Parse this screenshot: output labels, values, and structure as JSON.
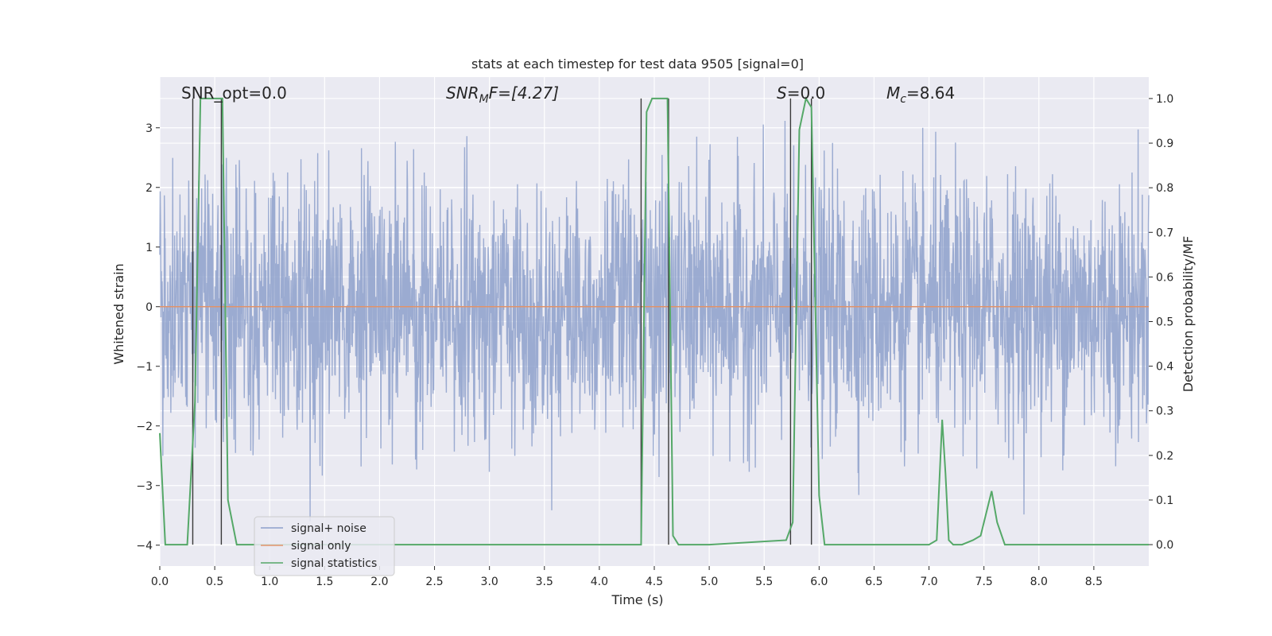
{
  "chart_data": {
    "type": "line",
    "title": "stats at each timestep for test data 9505 [signal=0]",
    "xlabel": "Time (s)",
    "ylabel": "Whitened strain",
    "ylabel_right": "Detection probability/MF",
    "xlim": [
      0.0,
      9.0
    ],
    "ylim": [
      -4.35,
      3.85
    ],
    "ylim_right": [
      -0.048,
      1.048
    ],
    "xticks": [
      "0.0",
      "0.5",
      "1.0",
      "1.5",
      "2.0",
      "2.5",
      "3.0",
      "3.5",
      "4.0",
      "4.5",
      "5.0",
      "5.5",
      "6.0",
      "6.5",
      "7.0",
      "7.5",
      "8.0",
      "8.5"
    ],
    "yticks_left": [
      "3",
      "2",
      "1",
      "0",
      "−1",
      "−2",
      "−3",
      "−4"
    ],
    "yticks_right": [
      "1.0",
      "0.9",
      "0.8",
      "0.7",
      "0.6",
      "0.5",
      "0.4",
      "0.3",
      "0.2",
      "0.1",
      "0.0"
    ],
    "grid": true,
    "legend_position": "lower-left",
    "annotations": {
      "snr_opt": "SNR_opt=0.0",
      "snr_mf_base": "SNR",
      "snr_mf_sub": "M",
      "snr_mf_rest": "F=[4.27]",
      "s_italic": "S",
      "s_rest": "=0.0",
      "mc_italic": "M",
      "mc_sub": "c",
      "mc_rest": "=8.64"
    },
    "series": [
      {
        "name": "signal+ noise",
        "color": "#8da0cb",
        "axis": "left",
        "description_values": "dense whitened noise, typical amplitude ~1.3, peaks up to about 3.3 and down to -3.6"
      },
      {
        "name": "signal only",
        "color": "#e1936a",
        "axis": "left",
        "x": [
          0.0,
          9.0
        ],
        "y": [
          0.0,
          0.0
        ]
      },
      {
        "name": "signal statistics",
        "color": "#55a868",
        "axis": "right",
        "x": [
          0.0,
          0.05,
          0.25,
          0.32,
          0.37,
          0.42,
          0.57,
          0.62,
          0.7,
          0.75,
          0.8,
          1.0,
          4.38,
          4.43,
          4.48,
          4.62,
          4.67,
          4.72,
          5.0,
          5.7,
          5.76,
          5.82,
          5.88,
          5.93,
          6.0,
          6.05,
          6.5,
          7.0,
          7.07,
          7.12,
          7.15,
          7.18,
          7.22,
          7.3,
          7.4,
          7.47,
          7.52,
          7.57,
          7.62,
          7.69,
          8.0,
          9.0
        ],
        "y": [
          0.25,
          0.0,
          0.0,
          0.32,
          1.0,
          1.0,
          1.0,
          0.1,
          0.0,
          0.0,
          0.0,
          0.0,
          0.0,
          0.97,
          1.0,
          1.0,
          0.02,
          0.0,
          0.0,
          0.01,
          0.05,
          0.93,
          1.0,
          0.98,
          0.11,
          0.0,
          0.0,
          0.0,
          0.01,
          0.28,
          0.16,
          0.01,
          0.0,
          0.0,
          0.01,
          0.02,
          0.07,
          0.12,
          0.05,
          0.0,
          0.0,
          0.0
        ]
      }
    ],
    "vertical_markers_x": [
      0.3,
      0.56,
      4.38,
      4.63,
      5.74,
      5.93
    ]
  }
}
